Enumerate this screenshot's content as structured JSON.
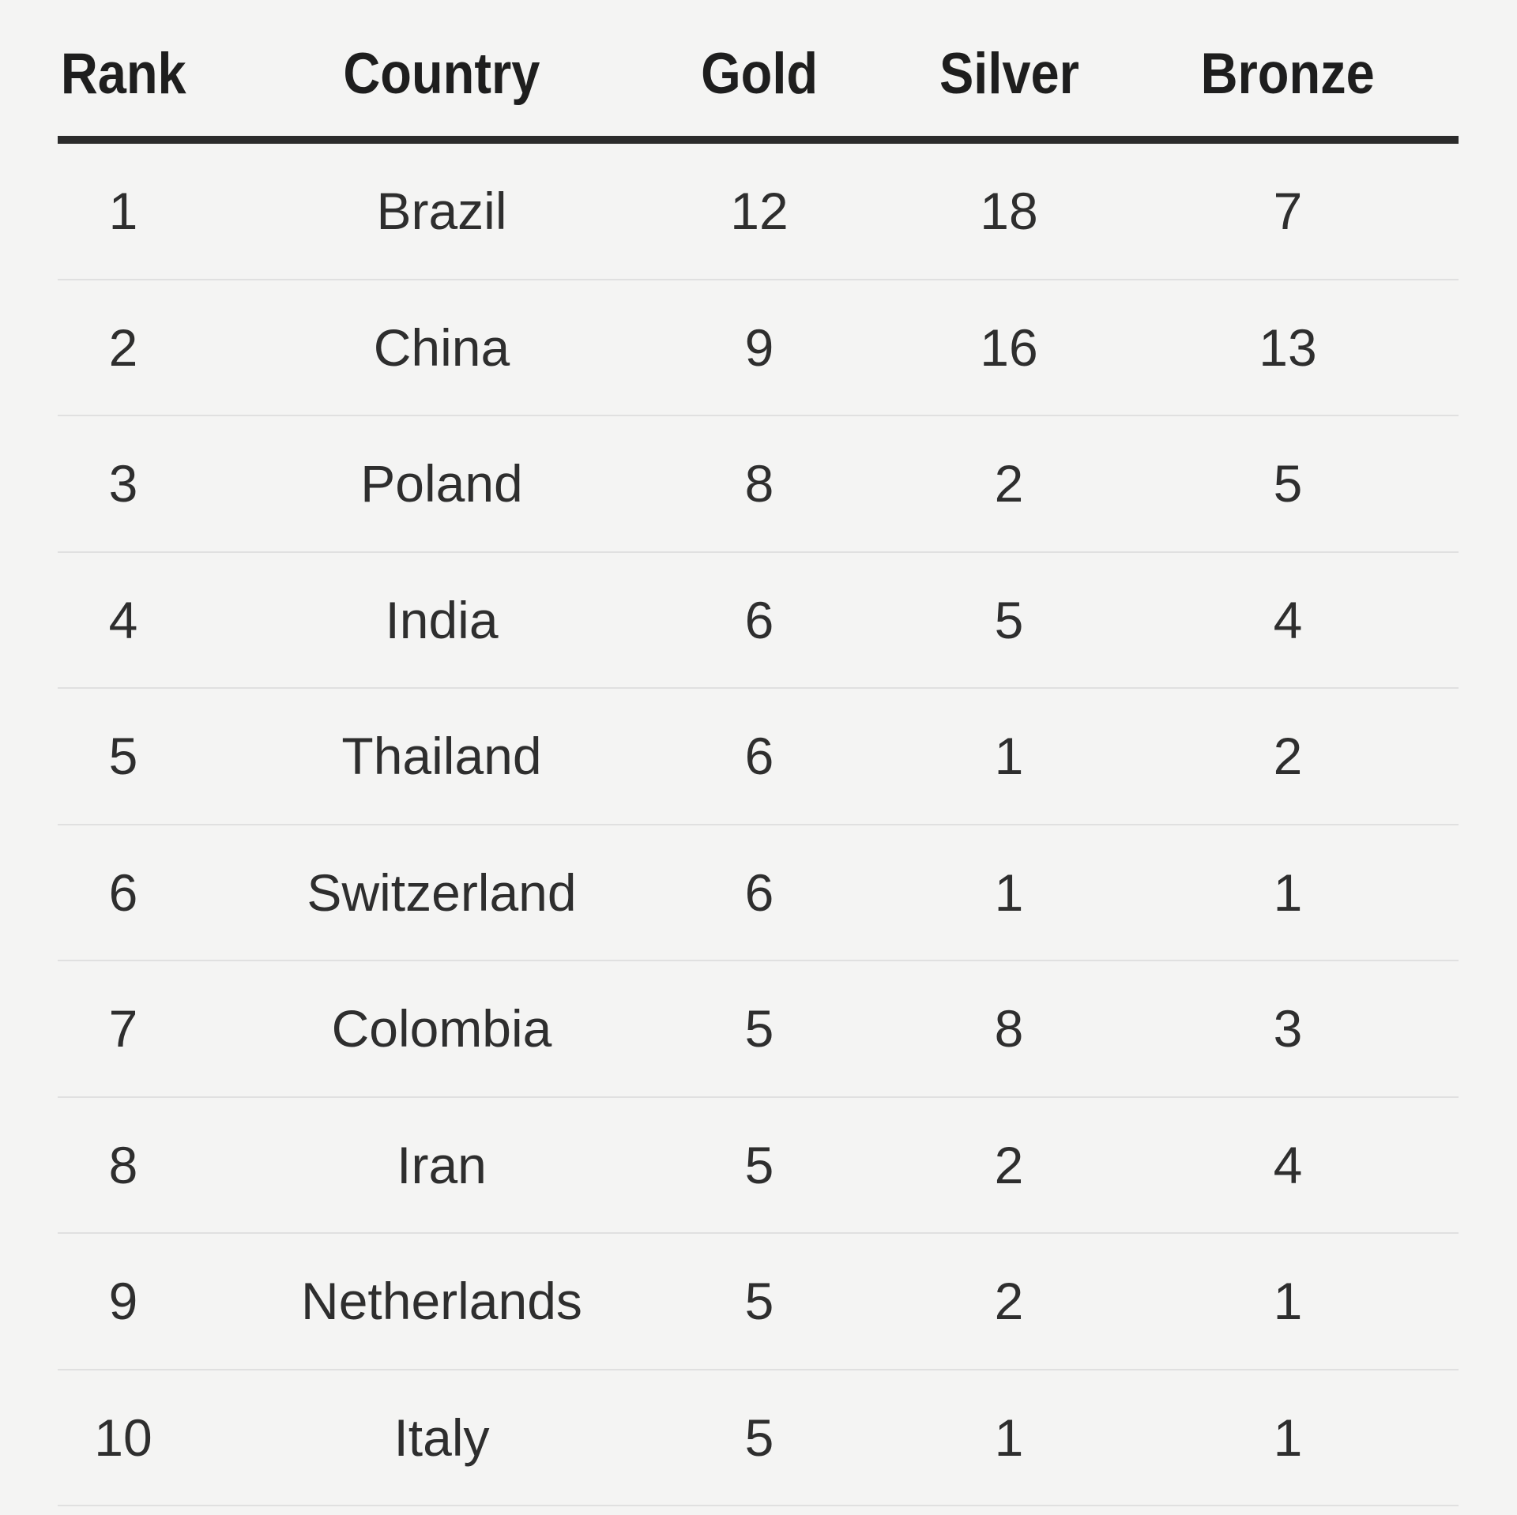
{
  "table": {
    "headers": [
      "Rank",
      "Country",
      "Gold",
      "Silver",
      "Bronze"
    ],
    "rows": [
      [
        "1",
        "Brazil",
        "12",
        "18",
        "7"
      ],
      [
        "2",
        "China",
        "9",
        "16",
        "13"
      ],
      [
        "3",
        "Poland",
        "8",
        "2",
        "5"
      ],
      [
        "4",
        "India",
        "6",
        "5",
        "4"
      ],
      [
        "5",
        "Thailand",
        "6",
        "1",
        "2"
      ],
      [
        "6",
        "Switzerland",
        "6",
        "1",
        "1"
      ],
      [
        "7",
        "Colombia",
        "5",
        "8",
        "3"
      ],
      [
        "8",
        "Iran",
        "5",
        "2",
        "4"
      ],
      [
        "9",
        "Netherlands",
        "5",
        "2",
        "1"
      ],
      [
        "10",
        "Italy",
        "5",
        "1",
        "1"
      ]
    ]
  },
  "colors": {
    "background": "#f4f4f3",
    "header_text": "#1e1e1e",
    "body_text": "#2e2e2e",
    "header_rule": "#2b2b2b",
    "row_divider": "#e0e0e0"
  }
}
